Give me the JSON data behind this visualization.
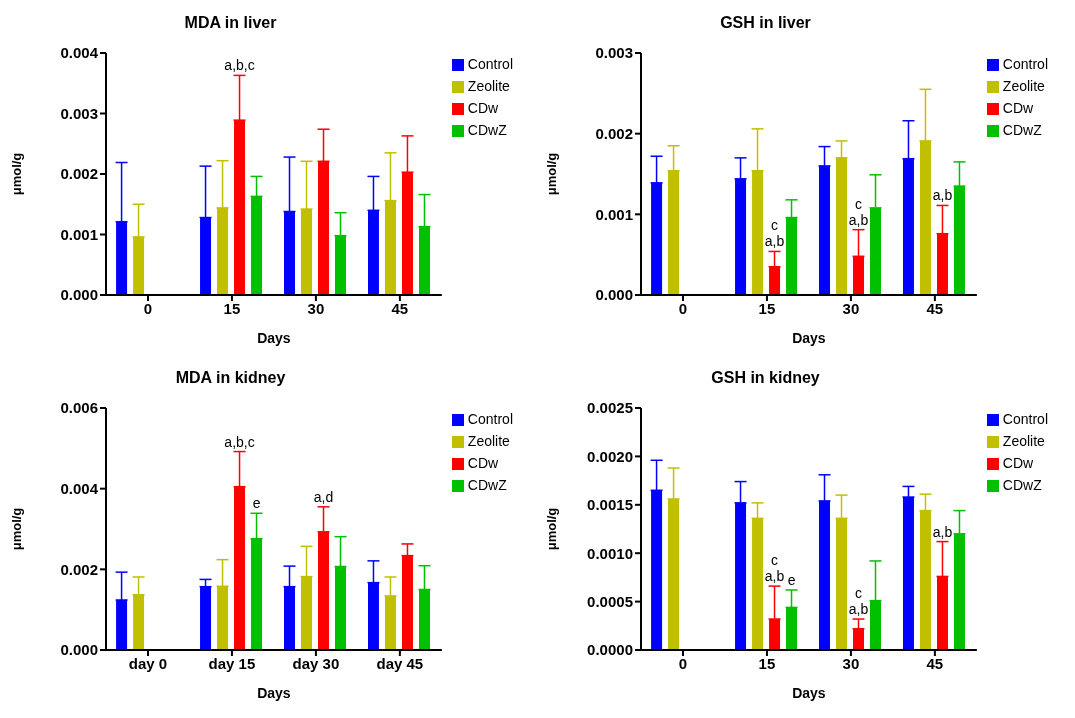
{
  "chart_data": [
    {
      "type": "bar",
      "title": "MDA in liver",
      "xlabel": "Days",
      "ylabel": "μmol/g",
      "categories": [
        "0",
        "15",
        "30",
        "45"
      ],
      "ylim": [
        0,
        0.004
      ],
      "yticks": [
        {
          "value": 0,
          "label": "0.000"
        },
        {
          "value": 0.001,
          "label": "0.001"
        },
        {
          "value": 0.002,
          "label": "0.002"
        },
        {
          "value": 0.003,
          "label": "0.003"
        },
        {
          "value": 0.004,
          "label": "0.004"
        }
      ],
      "legend": "top right",
      "grid": false,
      "series": [
        {
          "name": "Control",
          "color": "#0000ff",
          "values": [
            0.00121,
            0.00128,
            0.00138,
            0.0014
          ],
          "errors": [
            [
              0.00121,
              0.00219
            ],
            [
              0.00128,
              0.00213
            ],
            [
              0.00138,
              0.00228
            ],
            [
              0.0014,
              0.00196
            ]
          ]
        },
        {
          "name": "Zeolite",
          "color": "#c0c000",
          "values": [
            0.00096,
            0.00144,
            0.00142,
            0.00156
          ],
          "errors": [
            [
              0.00096,
              0.0015
            ],
            [
              0.00144,
              0.00222
            ],
            [
              0.00142,
              0.00221
            ],
            [
              0.00156,
              0.00235
            ]
          ]
        },
        {
          "name": "CDw",
          "color": "#ff0000",
          "values": [
            null,
            0.00289,
            0.00221,
            0.00203
          ],
          "errors": [
            null,
            [
              0.00289,
              0.00363
            ],
            [
              0.00221,
              0.00274
            ],
            [
              0.00203,
              0.00263
            ]
          ]
        },
        {
          "name": "CDwZ",
          "color": "#00c000",
          "values": [
            null,
            0.00163,
            0.00098,
            0.00113
          ],
          "errors": [
            null,
            [
              0.00163,
              0.00196
            ],
            [
              0.00098,
              0.00136
            ],
            [
              0.00113,
              0.00166
            ]
          ]
        }
      ],
      "annotations": [
        {
          "text": "a,b,c",
          "x": "15",
          "y": 0.00363
        }
      ]
    },
    {
      "type": "bar",
      "title": "GSH in liver",
      "xlabel": "Days",
      "ylabel": "μmol/g",
      "categories": [
        "0",
        "15",
        "30",
        "45"
      ],
      "ylim": [
        0,
        0.003
      ],
      "yticks": [
        {
          "value": 0,
          "label": "0.000"
        },
        {
          "value": 0.001,
          "label": "0.001"
        },
        {
          "value": 0.002,
          "label": "0.002"
        },
        {
          "value": 0.003,
          "label": "0.003"
        }
      ],
      "legend": "top right",
      "grid": false,
      "series": [
        {
          "name": "Control",
          "color": "#0000ff",
          "values": [
            0.00139,
            0.00144,
            0.0016,
            0.00169
          ],
          "errors": [
            [
              0.00139,
              0.00172
            ],
            [
              0.00144,
              0.0017
            ],
            [
              0.0016,
              0.00184
            ],
            [
              0.00169,
              0.00216
            ]
          ]
        },
        {
          "name": "Zeolite",
          "color": "#c0c000",
          "values": [
            0.00154,
            0.00154,
            0.0017,
            0.00191
          ],
          "errors": [
            [
              0.00154,
              0.00185
            ],
            [
              0.00154,
              0.00206
            ],
            [
              0.0017,
              0.00191
            ],
            [
              0.00191,
              0.00255
            ]
          ]
        },
        {
          "name": "CDw",
          "color": "#ff0000",
          "values": [
            null,
            0.00035,
            0.00048,
            0.00076
          ],
          "errors": [
            null,
            [
              0.00035,
              0.00054
            ],
            [
              0.00048,
              0.00081
            ],
            [
              0.00076,
              0.00111
            ]
          ]
        },
        {
          "name": "CDwZ",
          "color": "#00c000",
          "values": [
            null,
            0.00096,
            0.00108,
            0.00135
          ],
          "errors": [
            null,
            [
              0.00096,
              0.00118
            ],
            [
              0.00108,
              0.00149
            ],
            [
              0.00135,
              0.00165
            ]
          ]
        }
      ],
      "annotations": [
        {
          "text": "a,b",
          "x": "15",
          "y": 0.00054
        },
        {
          "text": "c",
          "x": "15",
          "y": 0.00054
        },
        {
          "text": "a,b",
          "x": "30",
          "y": 0.00081
        },
        {
          "text": "c",
          "x": "30",
          "y": 0.00081
        },
        {
          "text": "a,b",
          "x": "45",
          "y": 0.00111
        }
      ]
    },
    {
      "type": "bar",
      "title": "MDA in kidney",
      "xlabel": "Days",
      "ylabel": "μmol/g",
      "categories": [
        "day 0",
        "day 15",
        "day 30",
        "day 45"
      ],
      "ylim": [
        0,
        0.006
      ],
      "yticks": [
        {
          "value": 0,
          "label": "0.000"
        },
        {
          "value": 0.002,
          "label": "0.002"
        },
        {
          "value": 0.004,
          "label": "0.004"
        },
        {
          "value": 0.006,
          "label": "0.006"
        }
      ],
      "legend": "top right",
      "grid": false,
      "series": [
        {
          "name": "Control",
          "color": "#0000ff",
          "values": [
            0.00124,
            0.00157,
            0.00157,
            0.00167
          ],
          "errors": [
            [
              0.00124,
              0.00193
            ],
            [
              0.00157,
              0.00175
            ],
            [
              0.00157,
              0.00208
            ],
            [
              0.00167,
              0.00221
            ]
          ]
        },
        {
          "name": "Zeolite",
          "color": "#c0c000",
          "values": [
            0.00137,
            0.00158,
            0.00182,
            0.00134
          ],
          "errors": [
            [
              0.00137,
              0.00181
            ],
            [
              0.00158,
              0.00224
            ],
            [
              0.00182,
              0.00257
            ],
            [
              0.00134,
              0.00181
            ]
          ]
        },
        {
          "name": "CDw",
          "color": "#ff0000",
          "values": [
            null,
            0.00405,
            0.00293,
            0.00234
          ],
          "errors": [
            null,
            [
              0.00405,
              0.00492
            ],
            [
              0.00293,
              0.00355
            ],
            [
              0.00234,
              0.00263
            ]
          ]
        },
        {
          "name": "CDwZ",
          "color": "#00c000",
          "values": [
            null,
            0.00276,
            0.00207,
            0.0015
          ],
          "errors": [
            null,
            [
              0.00276,
              0.00339
            ],
            [
              0.00207,
              0.00281
            ],
            [
              0.0015,
              0.00209
            ]
          ]
        }
      ],
      "annotations": [
        {
          "text": "a,b,c",
          "x": "day 15",
          "y": 0.00492
        },
        {
          "text": "e",
          "x": "day 15",
          "y": 0.00339
        },
        {
          "text": "a,d",
          "x": "day 30",
          "y": 0.00355
        }
      ]
    },
    {
      "type": "bar",
      "title": "GSH in kidney",
      "xlabel": "Days",
      "ylabel": "μmol/g",
      "categories": [
        "0",
        "15",
        "30",
        "45"
      ],
      "ylim": [
        0,
        0.0025
      ],
      "yticks": [
        {
          "value": 0,
          "label": "0.0000"
        },
        {
          "value": 0.0005,
          "label": "0.0005"
        },
        {
          "value": 0.001,
          "label": "0.0010"
        },
        {
          "value": 0.0015,
          "label": "0.0015"
        },
        {
          "value": 0.002,
          "label": "0.0020"
        },
        {
          "value": 0.0025,
          "label": "0.0025"
        }
      ],
      "legend": "top right",
      "grid": false,
      "series": [
        {
          "name": "Control",
          "color": "#0000ff",
          "values": [
            0.00165,
            0.00152,
            0.00154,
            0.00158
          ],
          "errors": [
            [
              0.00165,
              0.00196
            ],
            [
              0.00152,
              0.00174
            ],
            [
              0.00154,
              0.00181
            ],
            [
              0.00158,
              0.00169
            ]
          ]
        },
        {
          "name": "Zeolite",
          "color": "#c0c000",
          "values": [
            0.00156,
            0.00136,
            0.00136,
            0.00144
          ],
          "errors": [
            [
              0.00156,
              0.00188
            ],
            [
              0.00136,
              0.00152
            ],
            [
              0.00136,
              0.0016
            ],
            [
              0.00144,
              0.00161
            ]
          ]
        },
        {
          "name": "CDw",
          "color": "#ff0000",
          "values": [
            null,
            0.00032,
            0.00022,
            0.00076
          ],
          "errors": [
            null,
            [
              0.00032,
              0.00066
            ],
            [
              0.00022,
              0.00032
            ],
            [
              0.00076,
              0.00112
            ]
          ]
        },
        {
          "name": "CDwZ",
          "color": "#00c000",
          "values": [
            null,
            0.00044,
            0.00051,
            0.0012
          ],
          "errors": [
            null,
            [
              0.00044,
              0.00062
            ],
            [
              0.00051,
              0.00092
            ],
            [
              0.0012,
              0.00144
            ]
          ]
        }
      ],
      "annotations": [
        {
          "text": "a,b",
          "x": "15",
          "y": 0.00066
        },
        {
          "text": "c",
          "x": "15",
          "y": 0.00066
        },
        {
          "text": "e",
          "x": "15",
          "y": 0.00062
        },
        {
          "text": "a,b",
          "x": "30",
          "y": 0.00032
        },
        {
          "text": "c",
          "x": "30",
          "y": 0.00032
        },
        {
          "text": "a,b",
          "x": "45",
          "y": 0.00112
        }
      ]
    }
  ]
}
